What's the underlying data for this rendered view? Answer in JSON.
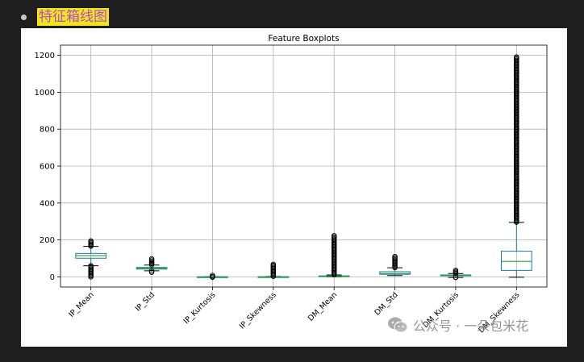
{
  "header": {
    "heading": "特征箱线图"
  },
  "watermark": {
    "text": "公众号 · 一朵包米花",
    "icon": "wechat-icon"
  },
  "colors": {
    "page_bg": "#1e1e1e",
    "heading_highlight": "#f2e51a",
    "heading_text": "#b04bd6",
    "box": "#1f77b4",
    "median": "#2ca02c",
    "grid": "#b0b0b0"
  },
  "chart_data": {
    "type": "box",
    "title": "Feature Boxplots",
    "xlabel": "",
    "ylabel": "",
    "ylim": [
      -55,
      1255
    ],
    "yticks": [
      0,
      200,
      400,
      600,
      800,
      1000,
      1200
    ],
    "grid": true,
    "categories": [
      "IP_Mean",
      "IP_Std",
      "IP_Kurtosis",
      "IP_Skewness",
      "DM_Mean",
      "DM_Std",
      "DM_Kurtosis",
      "DM_Skewness"
    ],
    "boxes": [
      {
        "name": "IP_Mean",
        "whisker_low": 60,
        "q1": 101,
        "median": 115,
        "q3": 127,
        "whisker_high": 165,
        "outliers_low": [
          0,
          60
        ],
        "outliers_high": [
          166,
          195
        ]
      },
      {
        "name": "IP_Std",
        "whisker_low": 33,
        "q1": 42,
        "median": 47,
        "q3": 51,
        "whisker_high": 64,
        "outliers_low": [
          25,
          32
        ],
        "outliers_high": [
          65,
          98
        ]
      },
      {
        "name": "IP_Kurtosis",
        "whisker_low": -1,
        "q1": 0,
        "median": 0.2,
        "q3": 0.5,
        "whisker_high": 1.2,
        "outliers_low": [
          -2,
          -1
        ],
        "outliers_high": [
          1.3,
          8
        ]
      },
      {
        "name": "IP_Skewness",
        "whisker_low": -2,
        "q1": -0.2,
        "median": 0.2,
        "q3": 0.9,
        "whisker_high": 2.5,
        "outliers_low": [],
        "outliers_high": [
          3,
          68
        ]
      },
      {
        "name": "DM_Mean",
        "whisker_low": 0.2,
        "q1": 1.9,
        "median": 2.8,
        "q3": 5.5,
        "whisker_high": 10.7,
        "outliers_low": [],
        "outliers_high": [
          11,
          223
        ]
      },
      {
        "name": "DM_Std",
        "whisker_low": 7,
        "q1": 14,
        "median": 18,
        "q3": 28,
        "whisker_high": 49,
        "outliers_low": [],
        "outliers_high": [
          50,
          110
        ]
      },
      {
        "name": "DM_Kurtosis",
        "whisker_low": -3,
        "q1": 5.8,
        "median": 8.4,
        "q3": 10.7,
        "whisker_high": 18,
        "outliers_low": [
          -3,
          -2
        ],
        "outliers_high": [
          18.5,
          35
        ]
      },
      {
        "name": "DM_Skewness",
        "whisker_low": -2,
        "q1": 35,
        "median": 84,
        "q3": 139,
        "whisker_high": 295,
        "outliers_low": [],
        "outliers_high": [
          296,
          1191
        ]
      }
    ]
  }
}
